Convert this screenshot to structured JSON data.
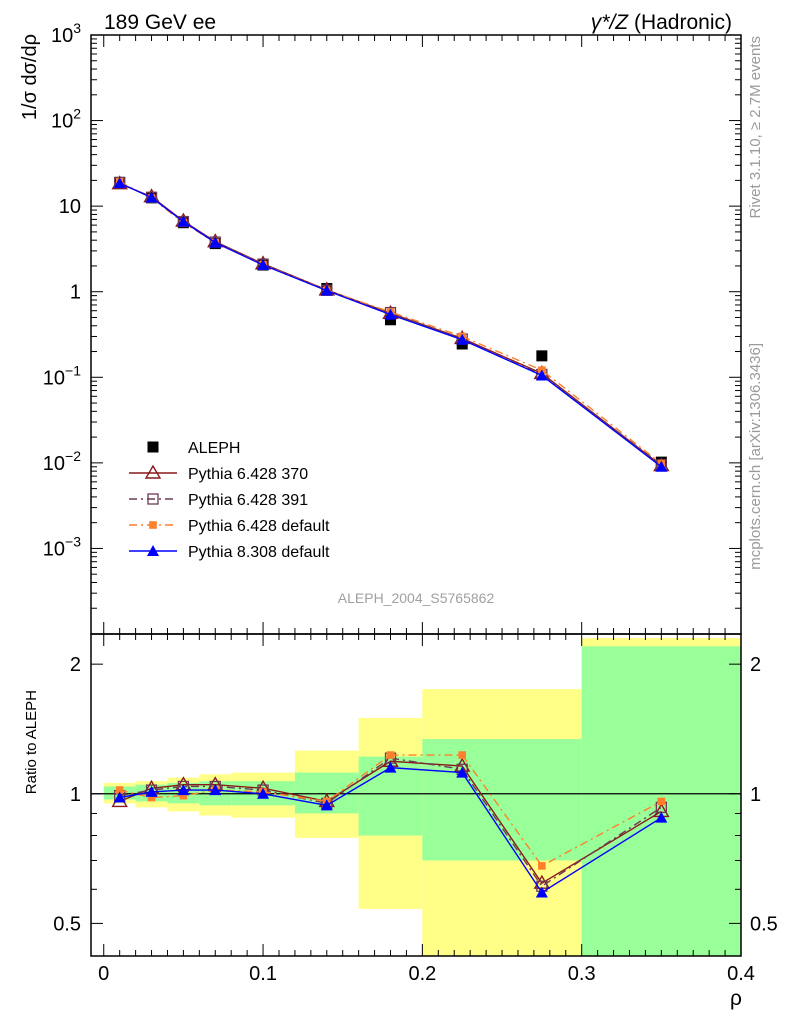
{
  "header": {
    "left": "189 GeV ee",
    "right_prefix": "γ*/Z",
    "right_suffix": " (Hadronic)"
  },
  "side_labels": {
    "top": "Rivet 3.1.10, ≥ 2.7M events",
    "bottom": "mcplots.cern.ch [arXiv:1306.3436]"
  },
  "watermark": "ALEPH_2004_S5765862",
  "colors": {
    "data": "#000000",
    "p370": "#8b1a1a",
    "p391": "#6b3a55",
    "p6def": "#ff7f2a",
    "p8def": "#0000ff",
    "band_inner": "#99ff99",
    "band_outer": "#ffff88"
  },
  "chart_data": [
    {
      "type": "line",
      "ylabel": "1/σ  dσ/dρ",
      "yscale": "log",
      "ylim": [
        0.0001,
        1000
      ],
      "xlim": [
        -0.008,
        0.4
      ],
      "ytick_labels": [
        "10^-3",
        "10^-2",
        "10^-1",
        "1",
        "10",
        "10^2",
        "10^3"
      ],
      "legend_placement": "bottom-left",
      "x": [
        0.01,
        0.03,
        0.05,
        0.07,
        0.1,
        0.14,
        0.18,
        0.225,
        0.275,
        0.35
      ],
      "series": [
        {
          "name": "ALEPH",
          "marker": "square",
          "color_key": "data",
          "values": [
            19.0,
            12.5,
            6.4,
            3.65,
            2.05,
            1.09,
            0.47,
            0.245,
            0.178,
            0.0102
          ]
        },
        {
          "name": "Pythia 6.428 370",
          "marker": "triangle-open",
          "color_key": "p370",
          "dash": "solid",
          "values": [
            18.3,
            12.9,
            6.7,
            3.85,
            2.12,
            1.05,
            0.56,
            0.285,
            0.111,
            0.0093
          ]
        },
        {
          "name": "Pythia 6.428 391",
          "marker": "square-open",
          "color_key": "p391",
          "dash": "dashdot",
          "values": [
            18.8,
            12.7,
            6.6,
            3.8,
            2.1,
            1.04,
            0.57,
            0.28,
            0.108,
            0.0095
          ]
        },
        {
          "name": "Pythia 6.428 default",
          "marker": "square-small",
          "color_key": "p6def",
          "dash": "dashdot",
          "values": [
            19.3,
            12.4,
            6.4,
            3.75,
            2.07,
            1.04,
            0.58,
            0.3,
            0.121,
            0.0098
          ]
        },
        {
          "name": "Pythia 8.308 default",
          "marker": "triangle",
          "color_key": "p8def",
          "dash": "solid",
          "values": [
            18.6,
            12.6,
            6.6,
            3.75,
            2.05,
            1.03,
            0.54,
            0.275,
            0.105,
            0.009
          ]
        }
      ]
    },
    {
      "type": "line",
      "ylabel": "Ratio to ALEPH",
      "xlabel": "ρ",
      "yscale": "log",
      "ylim": [
        0.42,
        2.35
      ],
      "xlim": [
        -0.008,
        0.4
      ],
      "ytick_labels": [
        "0.5",
        "1",
        "2"
      ],
      "xtick_labels": [
        "0",
        "0.1",
        "0.2",
        "0.3",
        "0.4"
      ],
      "reference_line": 1,
      "bins": [
        [
          0,
          0.02
        ],
        [
          0.02,
          0.04
        ],
        [
          0.04,
          0.06
        ],
        [
          0.06,
          0.08
        ],
        [
          0.08,
          0.12
        ],
        [
          0.12,
          0.16
        ],
        [
          0.16,
          0.2
        ],
        [
          0.2,
          0.25
        ],
        [
          0.25,
          0.3
        ],
        [
          0.3,
          0.4
        ]
      ],
      "band_inner": [
        [
          0.97,
          1.04
        ],
        [
          0.96,
          1.05
        ],
        [
          0.95,
          1.06
        ],
        [
          0.94,
          1.07
        ],
        [
          0.94,
          1.07
        ],
        [
          0.9,
          1.12
        ],
        [
          0.8,
          1.22
        ],
        [
          0.7,
          1.34
        ],
        [
          0.7,
          1.34
        ],
        [
          0.36,
          2.2
        ]
      ],
      "band_outer": [
        [
          0.95,
          1.06
        ],
        [
          0.93,
          1.07
        ],
        [
          0.91,
          1.09
        ],
        [
          0.89,
          1.11
        ],
        [
          0.88,
          1.12
        ],
        [
          0.79,
          1.26
        ],
        [
          0.54,
          1.5
        ],
        [
          0.37,
          1.75
        ],
        [
          0.37,
          1.75
        ],
        [
          0.36,
          2.3
        ]
      ],
      "x": [
        0.01,
        0.03,
        0.05,
        0.07,
        0.1,
        0.14,
        0.18,
        0.225,
        0.275,
        0.35
      ],
      "series": [
        {
          "name": "Pythia 6.428 370",
          "marker": "triangle-open",
          "color_key": "p370",
          "dash": "solid",
          "values": [
            0.96,
            1.03,
            1.05,
            1.05,
            1.03,
            0.96,
            1.19,
            1.16,
            0.62,
            0.91
          ]
        },
        {
          "name": "Pythia 6.428 391",
          "marker": "square-open",
          "color_key": "p391",
          "dash": "dashdot",
          "values": [
            0.99,
            1.02,
            1.04,
            1.04,
            1.02,
            0.95,
            1.21,
            1.14,
            0.61,
            0.93
          ]
        },
        {
          "name": "Pythia 6.428 default",
          "marker": "square-small",
          "color_key": "p6def",
          "dash": "dashdot",
          "values": [
            1.02,
            0.98,
            0.99,
            1.02,
            1.01,
            0.96,
            1.23,
            1.23,
            0.68,
            0.96
          ]
        },
        {
          "name": "Pythia 8.308 default",
          "marker": "triangle",
          "color_key": "p8def",
          "dash": "solid",
          "values": [
            0.98,
            1.01,
            1.02,
            1.02,
            1.0,
            0.94,
            1.15,
            1.12,
            0.59,
            0.88
          ]
        }
      ]
    }
  ]
}
